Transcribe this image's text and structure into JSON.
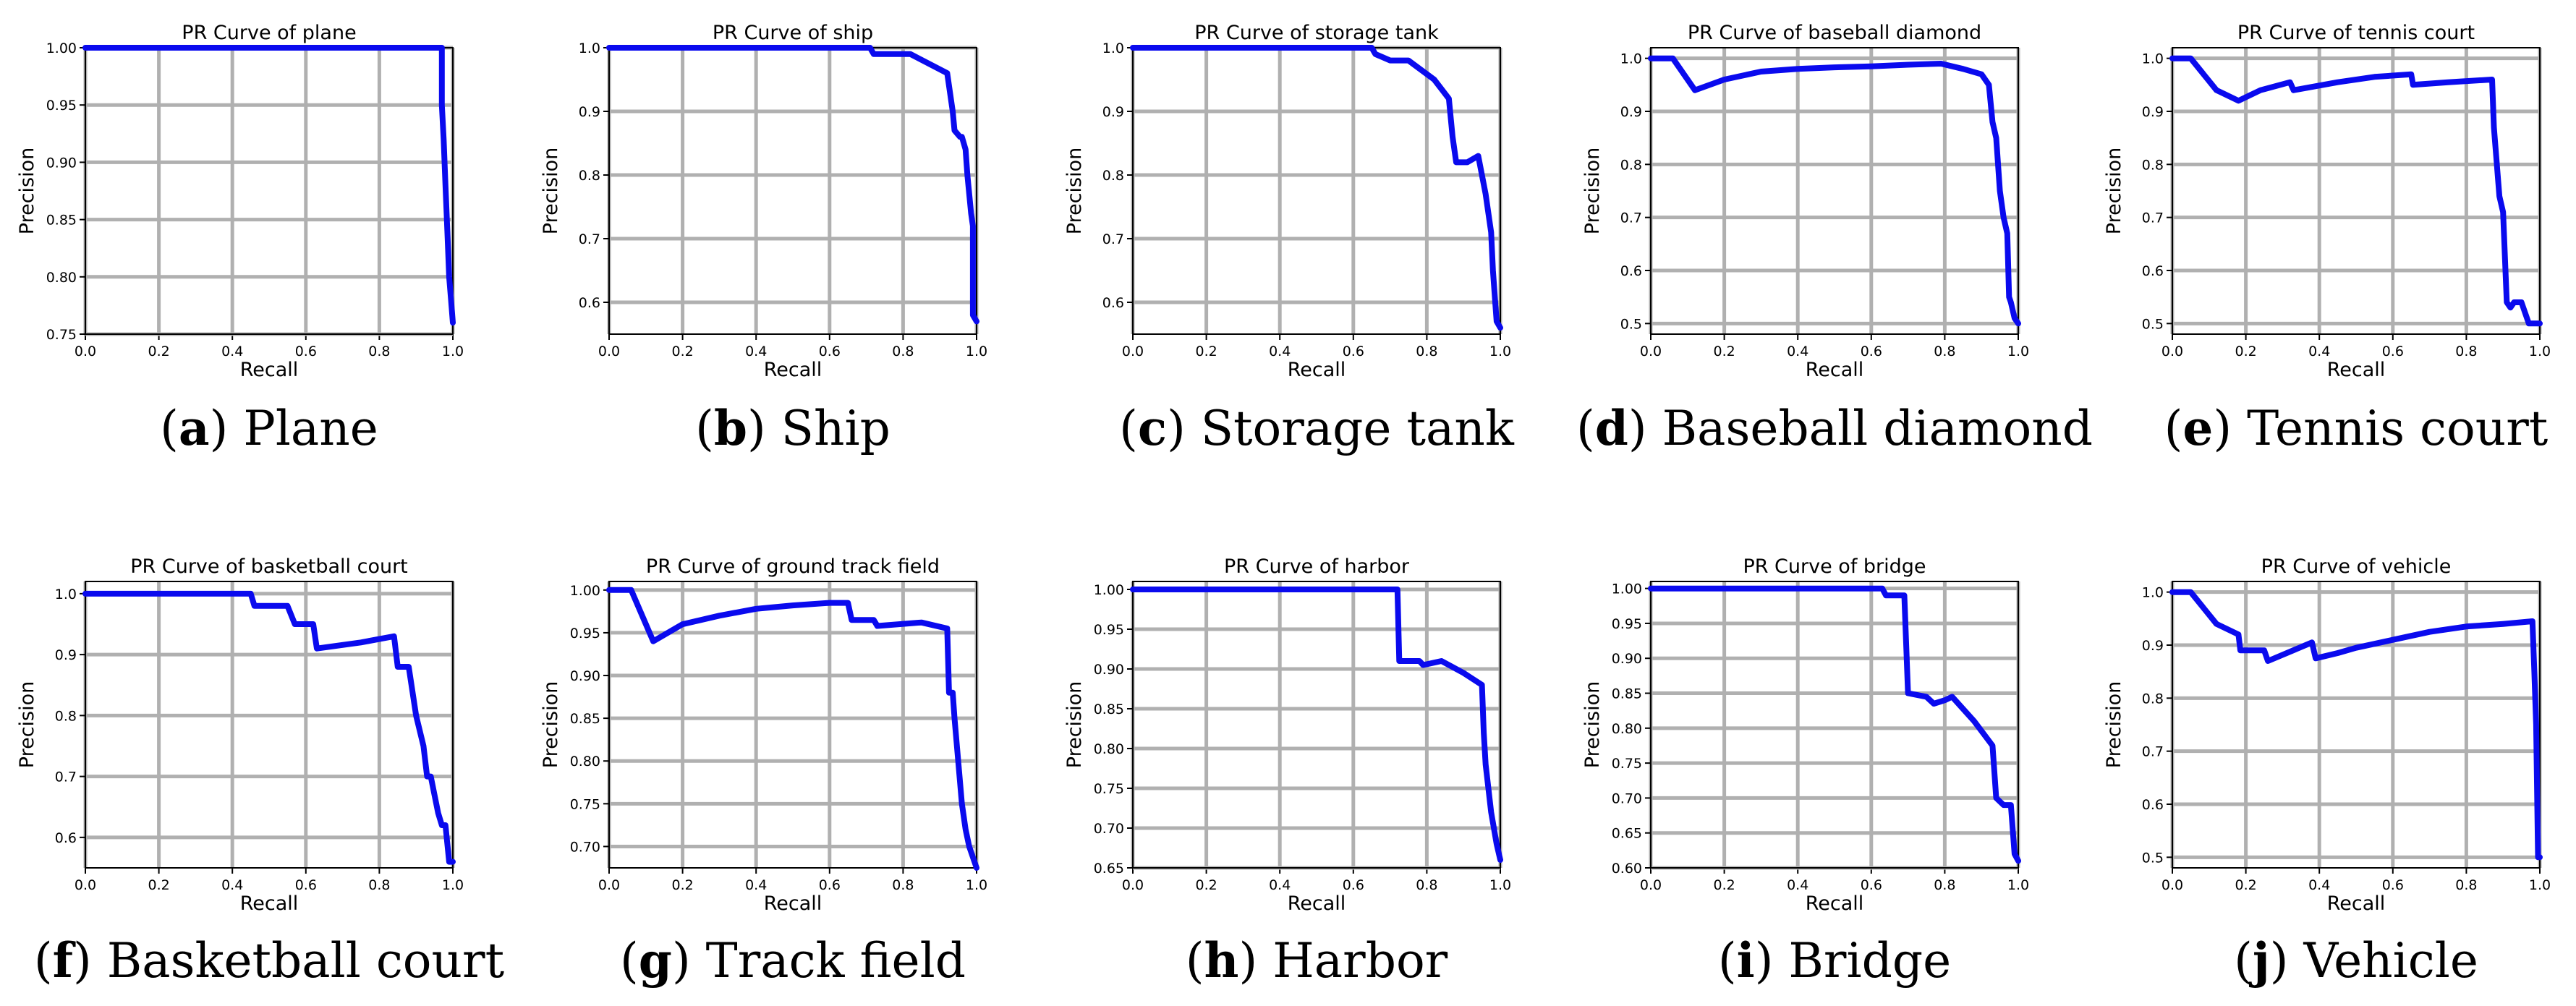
{
  "figure": {
    "captions": [
      {
        "letter": "a",
        "label": "Plane"
      },
      {
        "letter": "b",
        "label": "Ship"
      },
      {
        "letter": "c",
        "label": "Storage tank"
      },
      {
        "letter": "d",
        "label": "Baseball diamond"
      },
      {
        "letter": "e",
        "label": "Tennis court"
      },
      {
        "letter": "f",
        "label": "Basketball court"
      },
      {
        "letter": "g",
        "label": "Track field"
      },
      {
        "letter": "h",
        "label": "Harbor"
      },
      {
        "letter": "i",
        "label": "Bridge"
      },
      {
        "letter": "j",
        "label": "Vehicle"
      }
    ],
    "line_color": "#0a0aee"
  },
  "chart_data": [
    {
      "type": "line",
      "title": "PR Curve of plane",
      "xlabel": "Recall",
      "ylabel": "Precision",
      "xlim": [
        0,
        1
      ],
      "ylim": [
        0.75,
        1.0
      ],
      "xticks": [
        "0.0",
        "0.2",
        "0.4",
        "0.6",
        "0.8",
        "1.0"
      ],
      "yticks": [
        "0.75",
        "0.80",
        "0.85",
        "0.90",
        "0.95",
        "1.00"
      ],
      "grid": true,
      "series": [
        {
          "name": "plane",
          "x": [
            0.0,
            0.97,
            0.97,
            0.975,
            0.98,
            0.985,
            0.99,
            0.995,
            1.0
          ],
          "y": [
            1.0,
            1.0,
            0.95,
            0.92,
            0.88,
            0.84,
            0.8,
            0.78,
            0.76
          ]
        }
      ]
    },
    {
      "type": "line",
      "title": "PR Curve of ship",
      "xlabel": "Recall",
      "ylabel": "Precision",
      "xlim": [
        0,
        1
      ],
      "ylim": [
        0.55,
        1.0
      ],
      "xticks": [
        "0.0",
        "0.2",
        "0.4",
        "0.6",
        "0.8",
        "1.0"
      ],
      "yticks": [
        "0.6",
        "0.7",
        "0.8",
        "0.9",
        "1.0"
      ],
      "grid": true,
      "series": [
        {
          "name": "ship",
          "x": [
            0.0,
            0.71,
            0.72,
            0.82,
            0.92,
            0.935,
            0.94,
            0.955,
            0.96,
            0.97,
            0.975,
            0.985,
            0.99,
            0.99,
            1.0
          ],
          "y": [
            1.0,
            1.0,
            0.99,
            0.99,
            0.96,
            0.9,
            0.87,
            0.86,
            0.86,
            0.84,
            0.8,
            0.74,
            0.72,
            0.58,
            0.57
          ]
        }
      ]
    },
    {
      "type": "line",
      "title": "PR Curve of storage tank",
      "xlabel": "Recall",
      "ylabel": "Precision",
      "xlim": [
        0,
        1
      ],
      "ylim": [
        0.55,
        1.0
      ],
      "xticks": [
        "0.0",
        "0.2",
        "0.4",
        "0.6",
        "0.8",
        "1.0"
      ],
      "yticks": [
        "0.6",
        "0.7",
        "0.8",
        "0.9",
        "1.0"
      ],
      "grid": true,
      "series": [
        {
          "name": "storage tank",
          "x": [
            0.0,
            0.65,
            0.66,
            0.7,
            0.75,
            0.82,
            0.86,
            0.87,
            0.88,
            0.91,
            0.94,
            0.96,
            0.975,
            0.98,
            0.99,
            1.0
          ],
          "y": [
            1.0,
            1.0,
            0.99,
            0.98,
            0.98,
            0.95,
            0.92,
            0.86,
            0.82,
            0.82,
            0.83,
            0.77,
            0.71,
            0.65,
            0.57,
            0.56
          ]
        }
      ]
    },
    {
      "type": "line",
      "title": "PR Curve of baseball diamond",
      "xlabel": "Recall",
      "ylabel": "Precision",
      "xlim": [
        0,
        1
      ],
      "ylim": [
        0.48,
        1.02
      ],
      "xticks": [
        "0.0",
        "0.2",
        "0.4",
        "0.6",
        "0.8",
        "1.0"
      ],
      "yticks": [
        "0.5",
        "0.6",
        "0.7",
        "0.8",
        "0.9",
        "1.0"
      ],
      "grid": true,
      "series": [
        {
          "name": "baseball diamond",
          "x": [
            0.0,
            0.06,
            0.12,
            0.2,
            0.3,
            0.4,
            0.5,
            0.6,
            0.7,
            0.79,
            0.85,
            0.9,
            0.92,
            0.93,
            0.94,
            0.95,
            0.96,
            0.97,
            0.975,
            0.98,
            0.99,
            1.0
          ],
          "y": [
            1.0,
            1.0,
            0.94,
            0.96,
            0.975,
            0.98,
            0.983,
            0.985,
            0.988,
            0.99,
            0.98,
            0.97,
            0.95,
            0.88,
            0.85,
            0.75,
            0.7,
            0.67,
            0.55,
            0.54,
            0.51,
            0.5
          ]
        }
      ]
    },
    {
      "type": "line",
      "title": "PR Curve of tennis court",
      "xlabel": "Recall",
      "ylabel": "Precision",
      "xlim": [
        0,
        1
      ],
      "ylim": [
        0.48,
        1.02
      ],
      "xticks": [
        "0.0",
        "0.2",
        "0.4",
        "0.6",
        "0.8",
        "1.0"
      ],
      "yticks": [
        "0.5",
        "0.6",
        "0.7",
        "0.8",
        "0.9",
        "1.0"
      ],
      "grid": true,
      "series": [
        {
          "name": "tennis court",
          "x": [
            0.0,
            0.05,
            0.12,
            0.18,
            0.24,
            0.32,
            0.33,
            0.45,
            0.55,
            0.65,
            0.655,
            0.75,
            0.87,
            0.875,
            0.89,
            0.9,
            0.91,
            0.92,
            0.93,
            0.95,
            0.96,
            0.97,
            0.98,
            1.0
          ],
          "y": [
            1.0,
            1.0,
            0.94,
            0.92,
            0.94,
            0.955,
            0.94,
            0.955,
            0.965,
            0.97,
            0.95,
            0.955,
            0.96,
            0.87,
            0.74,
            0.71,
            0.54,
            0.53,
            0.54,
            0.54,
            0.52,
            0.5,
            0.5,
            0.5
          ]
        }
      ]
    },
    {
      "type": "line",
      "title": "PR Curve of basketball court",
      "xlabel": "Recall",
      "ylabel": "Precision",
      "xlim": [
        0,
        1
      ],
      "ylim": [
        0.55,
        1.02
      ],
      "xticks": [
        "0.0",
        "0.2",
        "0.4",
        "0.6",
        "0.8",
        "1.0"
      ],
      "yticks": [
        "0.6",
        "0.7",
        "0.8",
        "0.9",
        "1.0"
      ],
      "grid": true,
      "series": [
        {
          "name": "basketball court",
          "x": [
            0.0,
            0.45,
            0.46,
            0.55,
            0.57,
            0.62,
            0.63,
            0.75,
            0.84,
            0.85,
            0.88,
            0.9,
            0.92,
            0.93,
            0.94,
            0.95,
            0.96,
            0.97,
            0.98,
            0.99,
            1.0
          ],
          "y": [
            1.0,
            1.0,
            0.98,
            0.98,
            0.95,
            0.95,
            0.91,
            0.92,
            0.93,
            0.88,
            0.88,
            0.8,
            0.75,
            0.7,
            0.7,
            0.67,
            0.64,
            0.62,
            0.62,
            0.56,
            0.56
          ]
        }
      ]
    },
    {
      "type": "line",
      "title": "PR Curve of ground track field",
      "xlabel": "Recall",
      "ylabel": "Precision",
      "xlim": [
        0,
        1
      ],
      "ylim": [
        0.675,
        1.01
      ],
      "xticks": [
        "0.0",
        "0.2",
        "0.4",
        "0.6",
        "0.8",
        "1.0"
      ],
      "yticks": [
        "0.70",
        "0.75",
        "0.80",
        "0.85",
        "0.90",
        "0.95",
        "1.00"
      ],
      "grid": true,
      "series": [
        {
          "name": "ground track field",
          "x": [
            0.0,
            0.06,
            0.12,
            0.2,
            0.3,
            0.4,
            0.5,
            0.6,
            0.65,
            0.66,
            0.72,
            0.73,
            0.85,
            0.92,
            0.925,
            0.935,
            0.94,
            0.95,
            0.96,
            0.97,
            0.98,
            1.0
          ],
          "y": [
            1.0,
            1.0,
            0.94,
            0.96,
            0.97,
            0.978,
            0.982,
            0.985,
            0.985,
            0.965,
            0.965,
            0.958,
            0.962,
            0.955,
            0.88,
            0.88,
            0.85,
            0.8,
            0.75,
            0.72,
            0.7,
            0.675
          ]
        }
      ]
    },
    {
      "type": "line",
      "title": "PR Curve of harbor",
      "xlabel": "Recall",
      "ylabel": "Precision",
      "xlim": [
        0,
        1
      ],
      "ylim": [
        0.65,
        1.01
      ],
      "xticks": [
        "0.0",
        "0.2",
        "0.4",
        "0.6",
        "0.8",
        "1.0"
      ],
      "yticks": [
        "0.65",
        "0.70",
        "0.75",
        "0.80",
        "0.85",
        "0.90",
        "0.95",
        "1.00"
      ],
      "grid": true,
      "series": [
        {
          "name": "harbor",
          "x": [
            0.0,
            0.72,
            0.725,
            0.78,
            0.79,
            0.84,
            0.86,
            0.9,
            0.95,
            0.955,
            0.96,
            0.975,
            0.99,
            1.0
          ],
          "y": [
            1.0,
            1.0,
            0.91,
            0.91,
            0.905,
            0.91,
            0.905,
            0.895,
            0.88,
            0.82,
            0.78,
            0.72,
            0.68,
            0.66
          ]
        }
      ]
    },
    {
      "type": "line",
      "title": "PR Curve of bridge",
      "xlabel": "Recall",
      "ylabel": "Precision",
      "xlim": [
        0,
        1
      ],
      "ylim": [
        0.6,
        1.01
      ],
      "xticks": [
        "0.0",
        "0.2",
        "0.4",
        "0.6",
        "0.8",
        "1.0"
      ],
      "yticks": [
        "0.60",
        "0.65",
        "0.70",
        "0.75",
        "0.80",
        "0.85",
        "0.90",
        "0.95",
        "1.00"
      ],
      "grid": true,
      "series": [
        {
          "name": "bridge",
          "x": [
            0.0,
            0.63,
            0.64,
            0.69,
            0.7,
            0.75,
            0.77,
            0.8,
            0.82,
            0.88,
            0.93,
            0.94,
            0.96,
            0.98,
            0.99,
            1.0
          ],
          "y": [
            1.0,
            1.0,
            0.99,
            0.99,
            0.85,
            0.845,
            0.835,
            0.84,
            0.845,
            0.81,
            0.775,
            0.7,
            0.69,
            0.69,
            0.62,
            0.61
          ]
        }
      ]
    },
    {
      "type": "line",
      "title": "PR Curve of vehicle",
      "xlabel": "Recall",
      "ylabel": "Precision",
      "xlim": [
        0,
        1
      ],
      "ylim": [
        0.48,
        1.02
      ],
      "xticks": [
        "0.0",
        "0.2",
        "0.4",
        "0.6",
        "0.8",
        "1.0"
      ],
      "yticks": [
        "0.5",
        "0.6",
        "0.7",
        "0.8",
        "0.9",
        "1.0"
      ],
      "grid": true,
      "series": [
        {
          "name": "vehicle",
          "x": [
            0.0,
            0.05,
            0.12,
            0.18,
            0.185,
            0.25,
            0.26,
            0.38,
            0.39,
            0.45,
            0.5,
            0.6,
            0.7,
            0.8,
            0.9,
            0.98,
            0.985,
            0.99,
            0.995,
            1.0
          ],
          "y": [
            1.0,
            1.0,
            0.94,
            0.92,
            0.89,
            0.89,
            0.87,
            0.905,
            0.875,
            0.885,
            0.895,
            0.91,
            0.925,
            0.935,
            0.94,
            0.945,
            0.85,
            0.75,
            0.5,
            0.5
          ]
        }
      ]
    }
  ]
}
